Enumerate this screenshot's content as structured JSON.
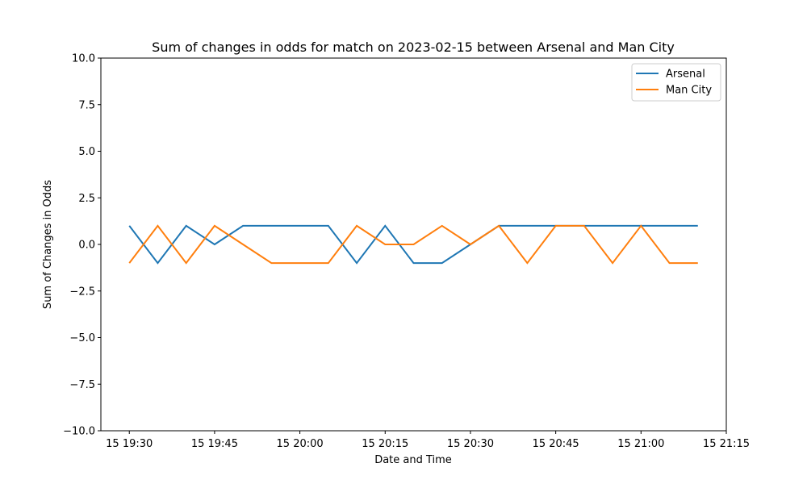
{
  "chart_data": {
    "type": "line",
    "title": "Sum of changes in odds for match on 2023-02-15 between Arsenal and Man City",
    "xlabel": "Date and Time",
    "ylabel": "Sum of Changes in Odds",
    "ylim": [
      -10,
      10
    ],
    "y_ticks": [
      -10.0,
      -7.5,
      -5.0,
      -2.5,
      0.0,
      2.5,
      5.0,
      7.5,
      10.0
    ],
    "y_tick_labels": [
      "−10.0",
      "−7.5",
      "−5.0",
      "−2.5",
      "0.0",
      "2.5",
      "5.0",
      "7.5",
      "10.0"
    ],
    "xlim": [
      "2023-02-15 19:25",
      "2023-02-15 21:15"
    ],
    "x_ticks": [
      "2023-02-15 19:30",
      "2023-02-15 19:45",
      "2023-02-15 20:00",
      "2023-02-15 20:15",
      "2023-02-15 20:30",
      "2023-02-15 20:45",
      "2023-02-15 21:00",
      "2023-02-15 21:15"
    ],
    "x_tick_labels": [
      "15 19:30",
      "15 19:45",
      "15 20:00",
      "15 20:15",
      "15 20:30",
      "15 20:45",
      "15 21:00",
      "15 21:15"
    ],
    "x": [
      "2023-02-15 19:30",
      "2023-02-15 19:35",
      "2023-02-15 19:40",
      "2023-02-15 19:45",
      "2023-02-15 19:50",
      "2023-02-15 19:55",
      "2023-02-15 20:00",
      "2023-02-15 20:05",
      "2023-02-15 20:10",
      "2023-02-15 20:15",
      "2023-02-15 20:20",
      "2023-02-15 20:25",
      "2023-02-15 20:30",
      "2023-02-15 20:35",
      "2023-02-15 20:40",
      "2023-02-15 20:45",
      "2023-02-15 20:50",
      "2023-02-15 20:55",
      "2023-02-15 21:00",
      "2023-02-15 21:05",
      "2023-02-15 21:10"
    ],
    "series": [
      {
        "name": "Arsenal",
        "color": "#1f77b4",
        "values": [
          1,
          -1,
          1,
          0,
          1,
          1,
          1,
          1,
          -1,
          1,
          -1,
          -1,
          0,
          1,
          1,
          1,
          1,
          1,
          1,
          1,
          1
        ]
      },
      {
        "name": "Man City",
        "color": "#ff7f0e",
        "values": [
          -1,
          1,
          -1,
          1,
          0,
          -1,
          -1,
          -1,
          1,
          0,
          0,
          1,
          0,
          1,
          -1,
          1,
          1,
          -1,
          1,
          -1,
          -1
        ]
      }
    ],
    "legend_position": "top-right",
    "grid": false
  }
}
